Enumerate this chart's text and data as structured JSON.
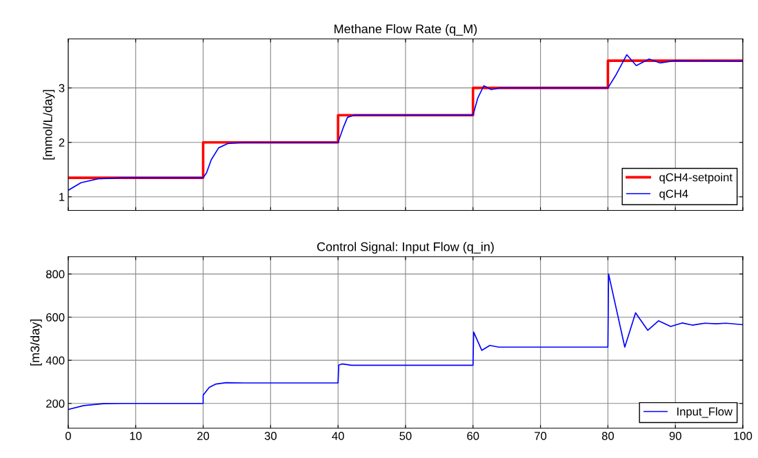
{
  "chart_data": [
    {
      "type": "line",
      "title": "Methane Flow Rate (q_M)",
      "ylabel": "[mmol/L/day]",
      "xlim": [
        0,
        100
      ],
      "xticks": [
        0,
        10,
        20,
        30,
        40,
        50,
        60,
        70,
        80,
        90,
        100
      ],
      "ylim": [
        0.75,
        3.9
      ],
      "yticks": [
        1,
        2,
        3
      ],
      "grid": true,
      "legend": "bottom right",
      "tick_labels": "y",
      "series": [
        {
          "name": "qCH4-setpoint",
          "color": "#ff0000",
          "x": [
            0,
            20,
            20,
            40,
            40,
            60,
            60,
            80,
            80,
            100
          ],
          "values": [
            1.35,
            1.35,
            2,
            2,
            2.5,
            2.5,
            3,
            3,
            3.5,
            3.5
          ]
        },
        {
          "name": "qCH4",
          "color": "#0000ff",
          "x": [
            0,
            1.9,
            4.4,
            8,
            20,
            20.5,
            21.2,
            22.3,
            23.7,
            26,
            40,
            40.8,
            41.4,
            42.4,
            60,
            60.7,
            61.6,
            62.7,
            64,
            80,
            81.2,
            82.8,
            84.2,
            86.1,
            87.7,
            89.9,
            100
          ],
          "values": [
            1.12,
            1.26,
            1.33,
            1.35,
            1.35,
            1.44,
            1.68,
            1.9,
            1.98,
            2,
            2,
            2.28,
            2.46,
            2.5,
            2.5,
            2.81,
            3.04,
            2.97,
            3,
            3,
            3.24,
            3.61,
            3.41,
            3.53,
            3.46,
            3.5,
            3.49
          ]
        }
      ]
    },
    {
      "type": "line",
      "title": "Control Signal: Input Flow (q_in)",
      "ylabel": "[m3/day]",
      "xlim": [
        0,
        100
      ],
      "xticks": [
        0,
        10,
        20,
        30,
        40,
        50,
        60,
        70,
        80,
        90,
        100
      ],
      "ylim": [
        85,
        880
      ],
      "yticks": [
        200,
        400,
        600,
        800
      ],
      "grid": true,
      "legend": "bottom right",
      "series": [
        {
          "name": "Input_Flow",
          "color": "#0000ff",
          "x": [
            0,
            2.3,
            5.2,
            8,
            20,
            20,
            20.9,
            21.9,
            23.4,
            26,
            40,
            40.1,
            40.6,
            42,
            60,
            60.1,
            61.3,
            62.5,
            63.8,
            80,
            80.1,
            82.5,
            84.1,
            85.9,
            87.5,
            89.3,
            91,
            92.5,
            94.4,
            96,
            97.5,
            100
          ],
          "values": [
            172,
            190,
            199,
            200,
            200,
            238,
            274,
            290,
            296,
            295,
            295,
            378,
            383,
            377,
            377,
            531,
            446,
            469,
            461,
            461,
            800,
            461,
            620,
            539,
            583,
            557,
            573,
            563,
            572,
            569,
            572,
            565
          ]
        }
      ]
    }
  ]
}
